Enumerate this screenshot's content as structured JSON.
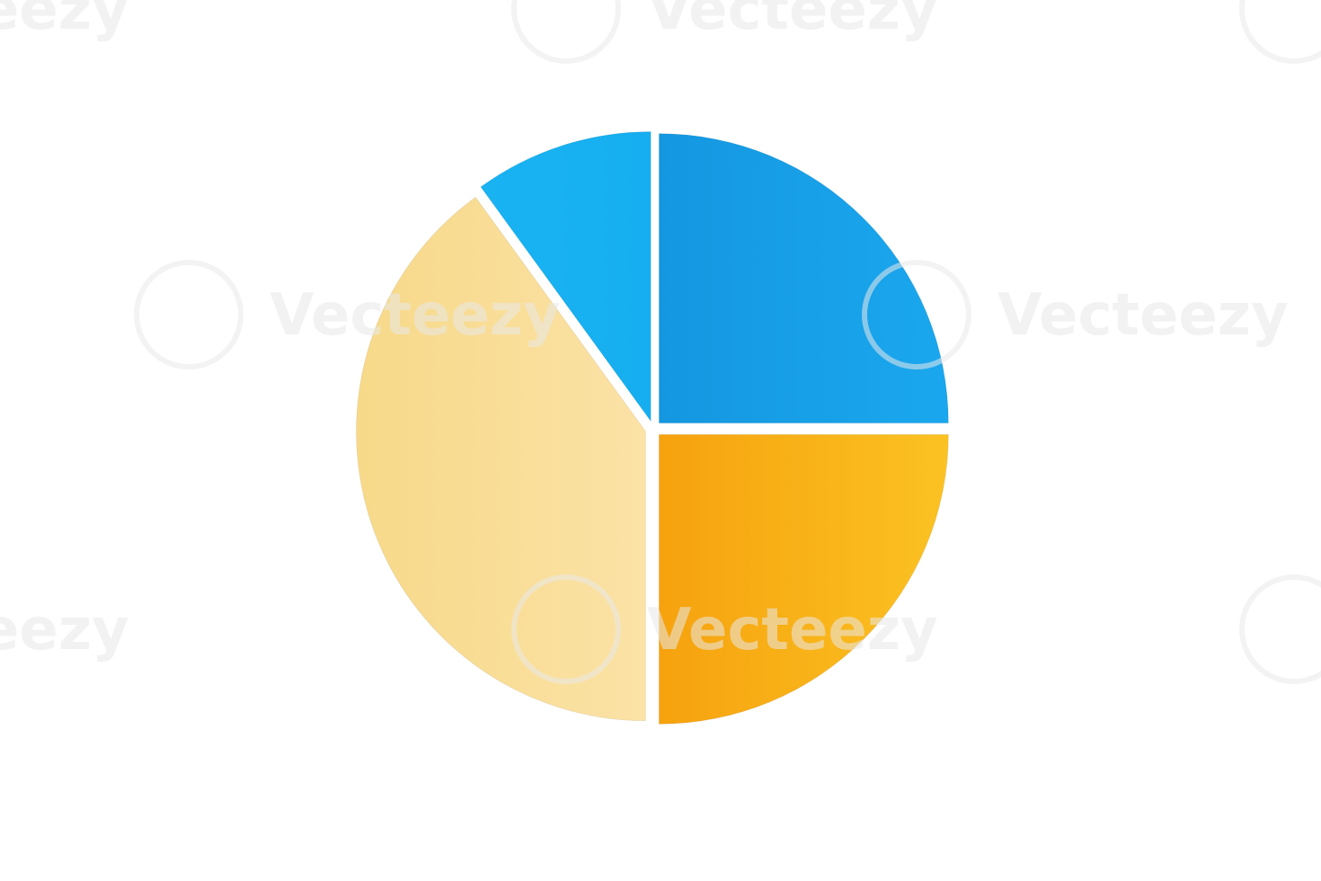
{
  "chart_data": {
    "type": "pie",
    "title": "",
    "slices": [
      {
        "value": 25,
        "color": "#1497e0",
        "color_light": "#1aa7ee"
      },
      {
        "value": 25,
        "color": "#f6a20e",
        "color_light": "#fbc223"
      },
      {
        "value": 40,
        "color": "#f7d989",
        "color_light": "#fbe2a6"
      },
      {
        "value": 10,
        "color": "#19b3f2",
        "color_light": "#16aef0"
      }
    ],
    "start_angle_deg": 0,
    "direction": "clockwise",
    "exploded": true
  },
  "watermark": {
    "text": "Vecteezy",
    "icon": "vecteezy-logo-icon",
    "color": "#e9e9e9"
  }
}
